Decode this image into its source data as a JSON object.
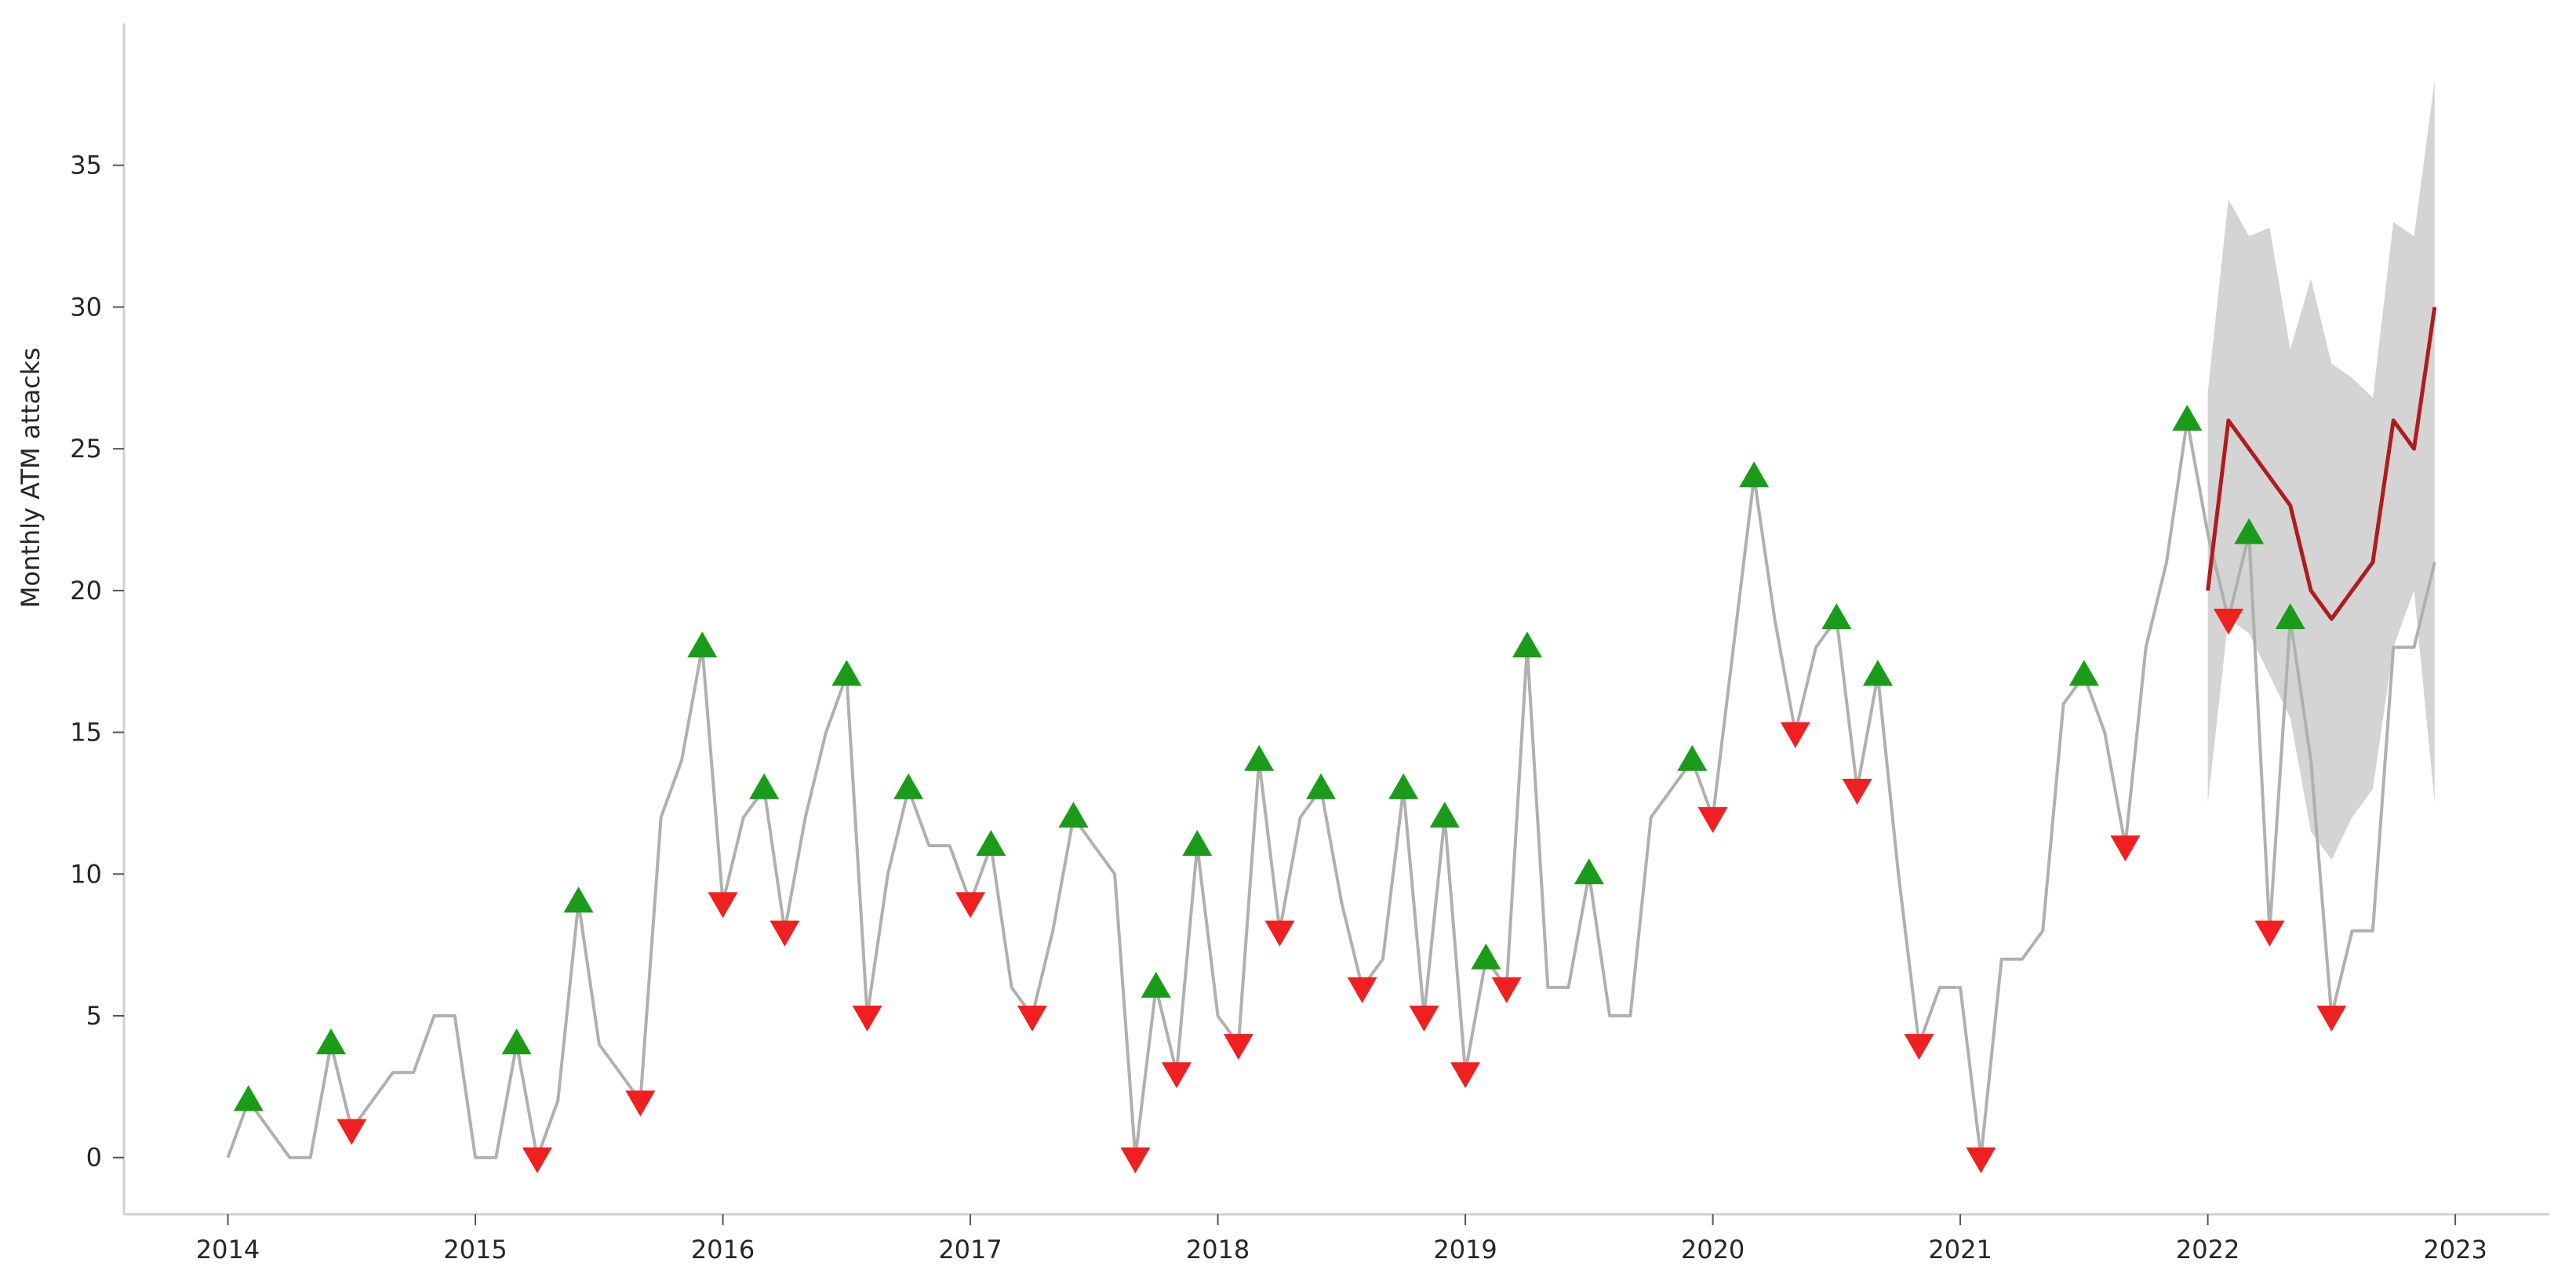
{
  "chart_data": {
    "type": "line",
    "ylabel": "Monthly ATM attacks",
    "xlabel": "",
    "x_tick_labels": [
      "2014",
      "2015",
      "2016",
      "2017",
      "2018",
      "2019",
      "2020",
      "2021",
      "2022",
      "2023"
    ],
    "y_tick_labels": [
      "0",
      "5",
      "10",
      "15",
      "20",
      "25",
      "30",
      "35"
    ],
    "xlim": [
      2013.58,
      2023.38
    ],
    "ylim": [
      -2,
      40
    ],
    "grid": false,
    "colors": {
      "observed": "#b0b0b0",
      "forecast": "#b01c1c",
      "interval": "#d4d4d4",
      "peak": "#1a9c1a",
      "trough": "#f02020"
    },
    "series": [
      {
        "key": "observed",
        "start": "2014-01",
        "values": [
          0,
          2,
          1,
          0,
          0,
          4,
          1,
          2,
          3,
          3,
          5,
          5,
          0,
          0,
          4,
          0,
          2,
          9,
          4,
          3,
          2,
          12,
          14,
          18,
          9,
          12,
          13,
          8,
          12,
          15,
          17,
          5,
          10,
          13,
          11,
          11,
          9,
          11,
          6,
          5,
          8,
          12,
          11,
          10,
          0,
          6,
          3,
          11,
          5,
          4,
          14,
          8,
          12,
          13,
          9,
          6,
          7,
          13,
          5,
          12,
          3,
          7,
          6,
          18,
          6,
          6,
          10,
          5,
          5,
          12,
          13,
          14,
          12,
          18,
          24,
          19,
          15,
          18,
          19,
          13,
          17,
          10,
          4,
          6,
          6,
          0,
          7,
          7,
          8,
          16,
          17,
          15,
          11,
          18,
          21,
          26,
          22,
          19,
          22,
          8,
          19,
          14,
          5,
          8,
          8,
          18,
          18,
          21
        ]
      },
      {
        "key": "forecast",
        "start": "2022-01",
        "values": [
          20,
          26,
          25,
          24,
          23,
          20,
          19,
          20,
          21,
          26,
          25,
          30
        ],
        "lower": [
          12.5,
          19,
          18.5,
          17,
          15.5,
          11.5,
          10.5,
          12,
          13,
          18,
          20,
          12.5
        ],
        "upper": [
          27,
          33.8,
          32.5,
          32.8,
          28.5,
          31,
          28,
          27.5,
          26.8,
          33,
          32.5,
          38
        ]
      }
    ],
    "peaks": [
      [
        "2014-02",
        2
      ],
      [
        "2014-06",
        4
      ],
      [
        "2015-03",
        4
      ],
      [
        "2015-06",
        9
      ],
      [
        "2015-12",
        18
      ],
      [
        "2016-03",
        13
      ],
      [
        "2016-07",
        17
      ],
      [
        "2016-10",
        13
      ],
      [
        "2017-02",
        11
      ],
      [
        "2017-06",
        12
      ],
      [
        "2017-10",
        6
      ],
      [
        "2017-12",
        11
      ],
      [
        "2018-03",
        14
      ],
      [
        "2018-06",
        13
      ],
      [
        "2018-10",
        13
      ],
      [
        "2018-12",
        12
      ],
      [
        "2019-02",
        7
      ],
      [
        "2019-04",
        18
      ],
      [
        "2019-07",
        10
      ],
      [
        "2019-12",
        14
      ],
      [
        "2020-03",
        24
      ],
      [
        "2020-07",
        19
      ],
      [
        "2020-09",
        17
      ],
      [
        "2021-07",
        17
      ],
      [
        "2021-12",
        26
      ],
      [
        "2022-03",
        22
      ],
      [
        "2022-05",
        19
      ]
    ],
    "troughs": [
      [
        "2014-07",
        1
      ],
      [
        "2015-04",
        0
      ],
      [
        "2015-09",
        2
      ],
      [
        "2016-01",
        9
      ],
      [
        "2016-04",
        8
      ],
      [
        "2016-08",
        5
      ],
      [
        "2017-01",
        9
      ],
      [
        "2017-04",
        5
      ],
      [
        "2017-09",
        0
      ],
      [
        "2017-11",
        3
      ],
      [
        "2018-02",
        4
      ],
      [
        "2018-04",
        8
      ],
      [
        "2018-08",
        6
      ],
      [
        "2018-11",
        5
      ],
      [
        "2019-01",
        3
      ],
      [
        "2019-03",
        6
      ],
      [
        "2020-01",
        12
      ],
      [
        "2020-05",
        15
      ],
      [
        "2020-08",
        13
      ],
      [
        "2020-11",
        4
      ],
      [
        "2021-02",
        0
      ],
      [
        "2021-09",
        11
      ],
      [
        "2022-02",
        19
      ],
      [
        "2022-04",
        8
      ],
      [
        "2022-07",
        5
      ]
    ]
  }
}
